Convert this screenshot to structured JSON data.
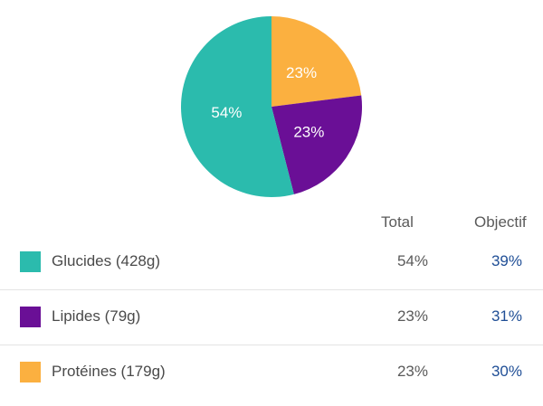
{
  "chart_data": {
    "type": "pie",
    "slices": [
      {
        "label": "Protéines",
        "value": 23,
        "display": "23%",
        "color": "#fbb040"
      },
      {
        "label": "Lipides",
        "value": 23,
        "display": "23%",
        "color": "#6a0f96"
      },
      {
        "label": "Glucides",
        "value": 54,
        "display": "54%",
        "color": "#2bbbad"
      }
    ]
  },
  "table": {
    "headers": {
      "total": "Total",
      "goal": "Objectif"
    },
    "rows": [
      {
        "label": "Glucides (428g)",
        "total": "54%",
        "goal": "39%",
        "color": "#2bbbad"
      },
      {
        "label": "Lipides (79g)",
        "total": "23%",
        "goal": "31%",
        "color": "#6a0f96"
      },
      {
        "label": "Protéines (179g)",
        "total": "23%",
        "goal": "30%",
        "color": "#fbb040"
      }
    ]
  }
}
